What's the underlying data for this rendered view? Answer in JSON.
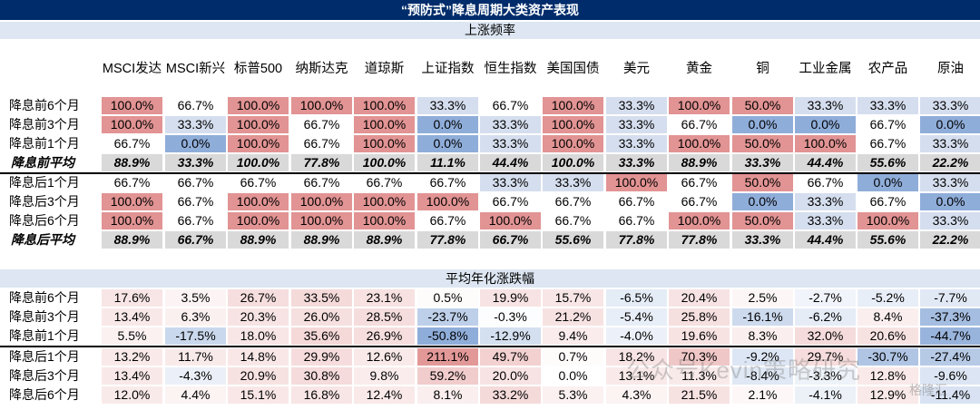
{
  "title": "“预防式”降息周期大类资产表现",
  "columns": [
    "MSCI发达",
    "MSCI新兴",
    "标普500",
    "纳斯达克",
    "道琼斯",
    "上证指数",
    "恒生指数",
    "美国国债",
    "美元",
    "黄金",
    "铜",
    "工业金属",
    "农产品",
    "原油"
  ],
  "section1": {
    "header": "上涨频率",
    "rows": [
      {
        "label": "降息前6个月",
        "values": [
          "100.0%",
          "66.7%",
          "100.0%",
          "100.0%",
          "100.0%",
          "33.3%",
          "66.7%",
          "100.0%",
          "33.3%",
          "100.0%",
          "50.0%",
          "33.3%",
          "33.3%",
          "33.3%"
        ]
      },
      {
        "label": "降息前3个月",
        "values": [
          "100.0%",
          "33.3%",
          "100.0%",
          "66.7%",
          "100.0%",
          "0.0%",
          "33.3%",
          "100.0%",
          "33.3%",
          "66.7%",
          "0.0%",
          "0.0%",
          "66.7%",
          "0.0%"
        ]
      },
      {
        "label": "降息前1个月",
        "values": [
          "66.7%",
          "0.0%",
          "100.0%",
          "66.7%",
          "100.0%",
          "0.0%",
          "33.3%",
          "100.0%",
          "33.3%",
          "100.0%",
          "50.0%",
          "100.0%",
          "66.7%",
          "33.3%"
        ]
      },
      {
        "label": "降息前平均",
        "avg": true,
        "values": [
          "88.9%",
          "33.3%",
          "100.0%",
          "77.8%",
          "100.0%",
          "11.1%",
          "44.4%",
          "100.0%",
          "33.3%",
          "88.9%",
          "33.3%",
          "44.4%",
          "55.6%",
          "22.2%"
        ]
      },
      {
        "label": "降息后1个月",
        "values": [
          "66.7%",
          "66.7%",
          "66.7%",
          "66.7%",
          "66.7%",
          "66.7%",
          "33.3%",
          "33.3%",
          "100.0%",
          "66.7%",
          "50.0%",
          "66.7%",
          "0.0%",
          "33.3%"
        ]
      },
      {
        "label": "降息后3个月",
        "values": [
          "100.0%",
          "66.7%",
          "100.0%",
          "100.0%",
          "100.0%",
          "100.0%",
          "66.7%",
          "66.7%",
          "66.7%",
          "66.7%",
          "0.0%",
          "33.3%",
          "66.7%",
          "0.0%"
        ]
      },
      {
        "label": "降息后6个月",
        "values": [
          "100.0%",
          "66.7%",
          "100.0%",
          "100.0%",
          "100.0%",
          "66.7%",
          "100.0%",
          "66.7%",
          "66.7%",
          "100.0%",
          "50.0%",
          "33.3%",
          "100.0%",
          "33.3%"
        ]
      },
      {
        "label": "降息后平均",
        "avg": true,
        "values": [
          "88.9%",
          "66.7%",
          "88.9%",
          "88.9%",
          "88.9%",
          "77.8%",
          "66.7%",
          "55.6%",
          "77.8%",
          "77.8%",
          "33.3%",
          "44.4%",
          "55.6%",
          "22.2%"
        ]
      }
    ]
  },
  "section2": {
    "header": "平均年化涨跌幅",
    "rows": [
      {
        "label": "降息前6个月",
        "values": [
          "17.6%",
          "3.5%",
          "26.7%",
          "33.5%",
          "23.1%",
          "0.5%",
          "19.9%",
          "15.7%",
          "-6.5%",
          "20.4%",
          "2.5%",
          "-2.7%",
          "-5.2%",
          "-7.7%"
        ]
      },
      {
        "label": "降息前3个月",
        "values": [
          "13.4%",
          "6.3%",
          "20.3%",
          "26.0%",
          "28.5%",
          "-23.7%",
          "-0.3%",
          "21.2%",
          "-5.4%",
          "25.8%",
          "-16.1%",
          "-6.2%",
          "8.4%",
          "-37.3%"
        ]
      },
      {
        "label": "降息前1个月",
        "values": [
          "5.5%",
          "-17.5%",
          "18.0%",
          "35.6%",
          "26.9%",
          "-50.8%",
          "-12.9%",
          "9.4%",
          "-4.0%",
          "19.6%",
          "8.3%",
          "32.0%",
          "20.6%",
          "-44.7%"
        ]
      },
      {
        "label": "降息后1个月",
        "values": [
          "13.2%",
          "11.7%",
          "14.8%",
          "29.9%",
          "12.6%",
          "211.1%",
          "49.7%",
          "0.7%",
          "18.2%",
          "70.3%",
          "-9.2%",
          "29.7%",
          "-30.7%",
          "-27.4%"
        ]
      },
      {
        "label": "降息后3个月",
        "values": [
          "13.4%",
          "-4.3%",
          "20.9%",
          "30.8%",
          "9.8%",
          "59.2%",
          "20.0%",
          "0.0%",
          "13.1%",
          "11.3%",
          "-8.4%",
          "-3.3%",
          "12.8%",
          "-9.6%"
        ]
      },
      {
        "label": "降息后6个月",
        "values": [
          "12.0%",
          "4.4%",
          "15.1%",
          "16.8%",
          "12.4%",
          "8.1%",
          "33.2%",
          "5.3%",
          "4.3%",
          "21.5%",
          "2.1%",
          "-4.1%",
          "12.9%",
          "-11.4%"
        ]
      }
    ]
  },
  "colors": {
    "title_bg": "#002c6b",
    "high": "#e29393",
    "low": "#8fadd9",
    "avg_bg": "#d9d9d9"
  },
  "watermark": "公众号Kevin策略研究",
  "watermark_logo": "格隆汇"
}
